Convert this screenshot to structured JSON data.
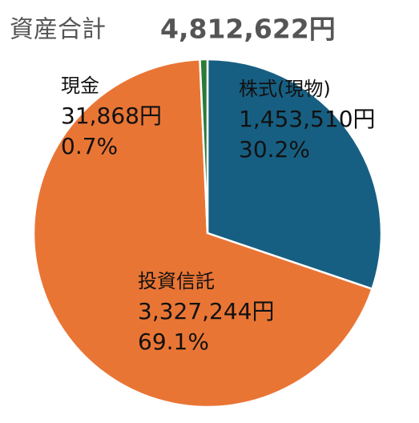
{
  "chart_data": {
    "type": "pie",
    "title": "資産合計",
    "total": 4812622,
    "total_label": "4,812,622円",
    "categories": [
      "株式(現物)",
      "投資信託",
      "現金"
    ],
    "values": [
      30.2,
      69.1,
      0.7
    ],
    "value_labels": [
      "30.2%",
      "69.1%",
      "0.7%"
    ],
    "amounts": [
      1453510,
      3327244,
      31868
    ],
    "amount_labels": [
      "1,453,510円",
      "3,327,244円",
      "31,868円"
    ],
    "colors": [
      "#175f82",
      "#e97535",
      "#2a7b38"
    ]
  }
}
